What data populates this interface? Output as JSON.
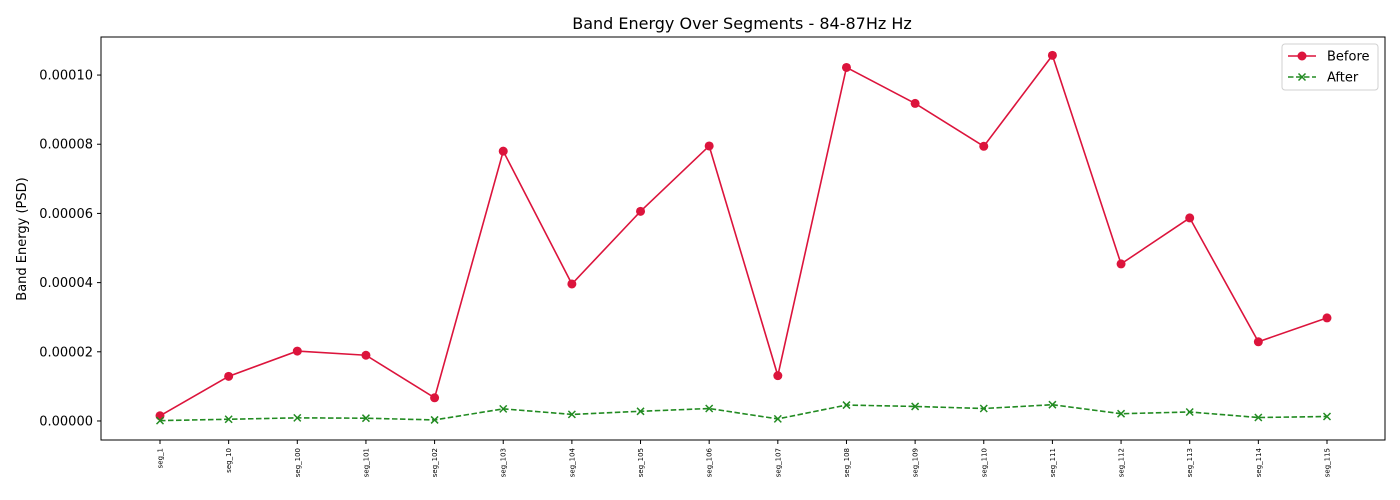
{
  "chart_data": {
    "type": "line",
    "title": "Band Energy Over Segments - 84-87Hz Hz",
    "xlabel": "",
    "ylabel": "Band Energy (PSD)",
    "ylim": [
      -5.5e-06,
      0.000111
    ],
    "yticks": [
      "0.00000",
      "0.00002",
      "0.00004",
      "0.00006",
      "0.00008",
      "0.00010"
    ],
    "ytick_values": [
      0,
      2e-05,
      4e-05,
      6e-05,
      8e-05,
      0.0001
    ],
    "categories": [
      "seg_1",
      "seg_10",
      "seg_100",
      "seg_101",
      "seg_102",
      "seg_103",
      "seg_104",
      "seg_105",
      "seg_106",
      "seg_107",
      "seg_108",
      "seg_109",
      "seg_110",
      "seg_111",
      "seg_112",
      "seg_113",
      "seg_114",
      "seg_115"
    ],
    "series": [
      {
        "name": "Before",
        "color": "#dc143c",
        "marker": "circle",
        "linestyle": "solid",
        "values": [
          1.5e-06,
          1.29e-05,
          2.02e-05,
          1.9e-05,
          6.7e-06,
          7.8e-05,
          3.96e-05,
          6.06e-05,
          7.95e-05,
          1.31e-05,
          0.0001022,
          9.18e-05,
          7.94e-05,
          0.0001057,
          4.54e-05,
          5.87e-05,
          2.29e-05,
          2.98e-05
        ]
      },
      {
        "name": "After",
        "color": "#228b22",
        "marker": "x",
        "linestyle": "dashed",
        "values": [
          1e-07,
          5e-07,
          9e-07,
          8e-07,
          3e-07,
          3.5e-06,
          1.9e-06,
          2.8e-06,
          3.6e-06,
          6e-07,
          4.6e-06,
          4.2e-06,
          3.6e-06,
          4.7e-06,
          2.1e-06,
          2.6e-06,
          1e-06,
          1.3e-06
        ]
      }
    ],
    "grid": false,
    "legend_position": "top-right"
  }
}
